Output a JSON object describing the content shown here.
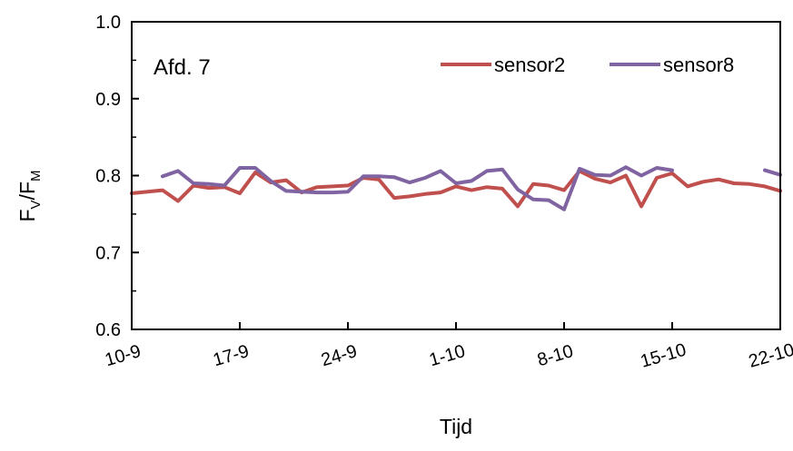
{
  "chart_data": {
    "type": "line",
    "annotation": "Afd. 7",
    "xlabel": "Tijd",
    "ylabel": {
      "main": "F",
      "sub1": "V",
      "sep": "/F",
      "sub2": "M"
    },
    "ylim": [
      0.6,
      1.0
    ],
    "yticks": [
      "0.6",
      "0.7",
      "0.8",
      "0.9",
      "1.0"
    ],
    "xlim": [
      0,
      42
    ],
    "xticks": [
      {
        "x": 0,
        "label": "10-9"
      },
      {
        "x": 7,
        "label": "17-9"
      },
      {
        "x": 14,
        "label": "24-9"
      },
      {
        "x": 21,
        "label": "1-10"
      },
      {
        "x": 28,
        "label": "8-10"
      },
      {
        "x": 35,
        "label": "15-10"
      },
      {
        "x": 42,
        "label": "22-10"
      }
    ],
    "legend_position": "top-right",
    "series": [
      {
        "name": "sensor2",
        "color": "#c0504d",
        "points": [
          [
            0,
            0.777
          ],
          [
            2,
            0.781
          ],
          [
            3,
            0.767
          ],
          [
            4,
            0.787
          ],
          [
            5,
            0.784
          ],
          [
            6,
            0.785
          ],
          [
            7,
            0.777
          ],
          [
            8,
            0.804
          ],
          [
            9,
            0.791
          ],
          [
            10,
            0.794
          ],
          [
            11,
            0.778
          ],
          [
            12,
            0.785
          ],
          [
            13,
            0.786
          ],
          [
            14,
            0.787
          ],
          [
            15,
            0.797
          ],
          [
            16,
            0.795
          ],
          [
            17,
            0.771
          ],
          [
            18,
            0.773
          ],
          [
            19,
            0.776
          ],
          [
            20,
            0.778
          ],
          [
            21,
            0.786
          ],
          [
            22,
            0.781
          ],
          [
            23,
            0.785
          ],
          [
            24,
            0.783
          ],
          [
            25,
            0.76
          ],
          [
            26,
            0.789
          ],
          [
            27,
            0.787
          ],
          [
            28,
            0.781
          ],
          [
            29,
            0.806
          ],
          [
            30,
            0.796
          ],
          [
            31,
            0.791
          ],
          [
            32,
            0.8
          ],
          [
            33,
            0.76
          ],
          [
            34,
            0.797
          ],
          [
            35,
            0.803
          ],
          [
            36,
            0.786
          ],
          [
            37,
            0.792
          ],
          [
            38,
            0.795
          ],
          [
            39,
            0.79
          ],
          [
            40,
            0.789
          ],
          [
            41,
            0.786
          ],
          [
            42,
            0.78
          ]
        ]
      },
      {
        "name": "sensor8",
        "color": "#8064a2",
        "points": [
          [
            2,
            0.799
          ],
          [
            3,
            0.806
          ],
          [
            4,
            0.79
          ],
          [
            5,
            0.789
          ],
          [
            6,
            0.787
          ],
          [
            7,
            0.81
          ],
          [
            8,
            0.81
          ],
          [
            9,
            0.793
          ],
          [
            10,
            0.78
          ],
          [
            11,
            0.779
          ],
          [
            12,
            0.778
          ],
          [
            13,
            0.778
          ],
          [
            14,
            0.779
          ],
          [
            15,
            0.799
          ],
          [
            16,
            0.799
          ],
          [
            17,
            0.798
          ],
          [
            18,
            0.791
          ],
          [
            19,
            0.797
          ],
          [
            20,
            0.806
          ],
          [
            21,
            0.79
          ],
          [
            22,
            0.793
          ],
          [
            23,
            0.806
          ],
          [
            24,
            0.808
          ],
          [
            25,
            0.782
          ],
          [
            26,
            0.769
          ],
          [
            27,
            0.768
          ],
          [
            28,
            0.756
          ],
          [
            29,
            0.809
          ],
          [
            30,
            0.801
          ],
          [
            31,
            0.8
          ],
          [
            32,
            0.811
          ],
          [
            33,
            0.8
          ],
          [
            34,
            0.81
          ],
          [
            35,
            0.807
          ],
          null,
          [
            41,
            0.807
          ],
          [
            42,
            0.801
          ]
        ]
      }
    ]
  }
}
